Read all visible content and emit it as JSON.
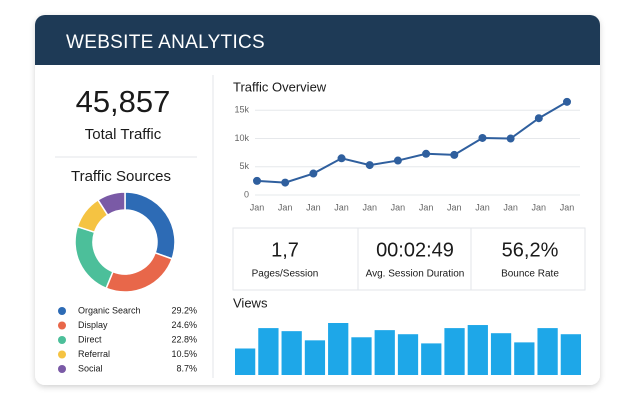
{
  "header": {
    "title": "WEBSITE ANALYTICS"
  },
  "total": {
    "value": "45,857",
    "label": "Total Traffic"
  },
  "stats": [
    {
      "value": "1,7",
      "label": "Pages/Session"
    },
    {
      "value": "00:02:49",
      "label": "Avg. Session Duration"
    },
    {
      "value": "56,2%",
      "label": "Bounce Rate"
    }
  ],
  "chart_data": [
    {
      "type": "pie",
      "title": "Traffic Sources",
      "categories": [
        "Organic Search",
        "Display",
        "Direct",
        "Referral",
        "Social"
      ],
      "values": [
        29.2,
        24.6,
        22.8,
        10.5,
        8.7
      ],
      "value_labels": [
        "29.2%",
        "24.6%",
        "22.8%",
        "10.5%",
        "8.7%"
      ],
      "colors": [
        "#2d6bb5",
        "#e8674a",
        "#4cbf9a",
        "#f5c342",
        "#7a5aa6"
      ]
    },
    {
      "type": "line",
      "title": "Traffic Overview",
      "categories": [
        "Jan",
        "Jan",
        "Jan",
        "Jan",
        "Jan",
        "Jan",
        "Jan",
        "Jan",
        "Jan",
        "Jan",
        "Jan",
        "Jan"
      ],
      "values": [
        2500,
        2200,
        3800,
        6500,
        5300,
        6100,
        7300,
        7100,
        10100,
        10000,
        13600,
        16500
      ],
      "color": "#2f5f9e",
      "ylim": [
        0,
        17000
      ],
      "yticks": [
        0,
        {
          "value": 5000,
          "label": "5k"
        },
        {
          "value": 10000,
          "label": "10k"
        },
        {
          "value": 15000,
          "label": "15k"
        }
      ],
      "grid": true
    },
    {
      "type": "bar",
      "title": "Views",
      "values": [
        26,
        46,
        43,
        34,
        51,
        37,
        44,
        40,
        31,
        46,
        49,
        41,
        32,
        46,
        40
      ],
      "color": "#1ea7e8"
    }
  ]
}
